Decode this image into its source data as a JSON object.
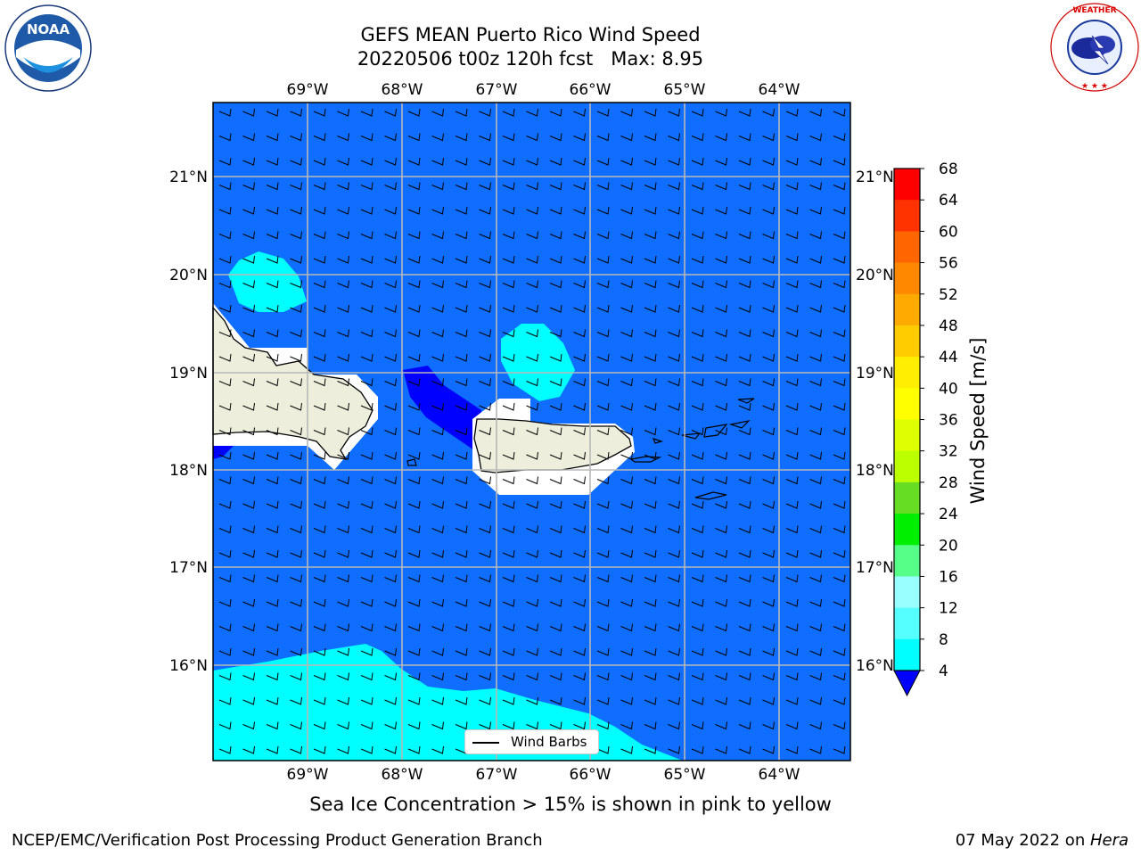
{
  "header": {
    "title_line1": "GEFS MEAN Puerto Rico Wind Speed",
    "title_line2": "20220506 t00z 120h fcst   Max: 8.95"
  },
  "logos": {
    "left": {
      "icon": "noaa-logo",
      "text": "NOAA"
    },
    "right": {
      "icon": "nws-logo",
      "text": "NATIONAL WEATHER SERVICE"
    }
  },
  "map": {
    "region": "Puerto Rico",
    "lon_range": [
      -70.0,
      -63.25
    ],
    "lat_range": [
      15.0,
      21.75
    ],
    "lon_ticks": [
      "69°W",
      "68°W",
      "67°W",
      "66°W",
      "65°W",
      "64°W"
    ],
    "lat_ticks": [
      "21°N",
      "20°N",
      "19°N",
      "18°N",
      "17°N",
      "16°N"
    ],
    "gridlines": true,
    "background_color": "#0f6eff",
    "land_color": "#eeeedd",
    "legend_label": "Wind Barbs",
    "legend_position": "lower-center"
  },
  "colorbar": {
    "label": "Wind Speed [m/s]",
    "ticks": [
      "68",
      "64",
      "60",
      "56",
      "52",
      "48",
      "44",
      "40",
      "36",
      "32",
      "28",
      "24",
      "20",
      "16",
      "12",
      "8",
      "4"
    ],
    "colors": [
      "#ff0000",
      "#ff3300",
      "#ff6600",
      "#ff8800",
      "#ffaa00",
      "#ffcc00",
      "#ffee00",
      "#ffff00",
      "#ddff00",
      "#bbff00",
      "#66dd22",
      "#00ee00",
      "#55ff88",
      "#99ffff",
      "#55ffff",
      "#00ffff",
      "#0f6eff"
    ],
    "extend_color": "#0000ff"
  },
  "subtitle": "Sea Ice Concentration > 15% is shown in pink to yellow",
  "footer": {
    "left": "NCEP/EMC/Verification Post Processing Product Generation Branch",
    "right_date": "07 May 2022 on ",
    "right_host": "Hera"
  }
}
